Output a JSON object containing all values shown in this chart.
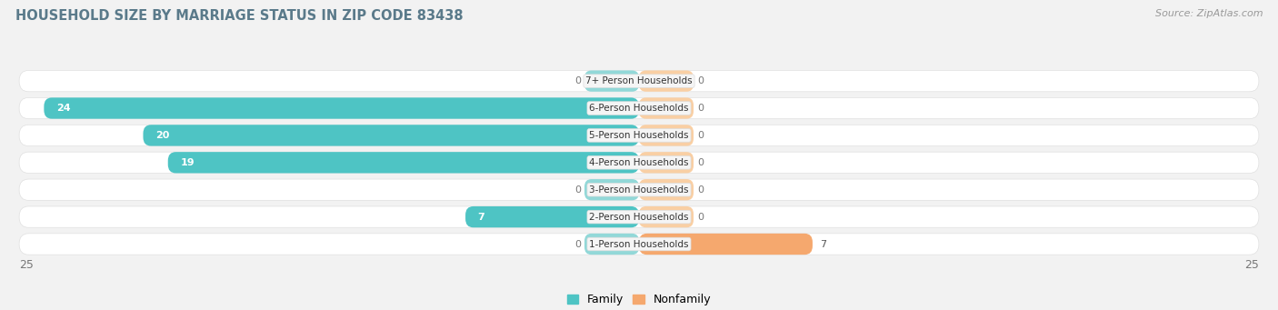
{
  "title": "HOUSEHOLD SIZE BY MARRIAGE STATUS IN ZIP CODE 83438",
  "source": "Source: ZipAtlas.com",
  "categories": [
    "7+ Person Households",
    "6-Person Households",
    "5-Person Households",
    "4-Person Households",
    "3-Person Households",
    "2-Person Households",
    "1-Person Households"
  ],
  "family_values": [
    0,
    24,
    20,
    19,
    0,
    7,
    0
  ],
  "nonfamily_values": [
    0,
    0,
    0,
    0,
    0,
    0,
    7
  ],
  "family_color": "#4EC4C4",
  "nonfamily_color": "#F5A86E",
  "family_color_zero": "#92D8D8",
  "nonfamily_color_zero": "#F9CFA4",
  "axis_limit": 25,
  "bg_color": "#f2f2f2",
  "row_bg_color": "#ffffff",
  "row_edge_color": "#e0e0e0",
  "label_bg_color": "#f5f5f5",
  "legend_labels": [
    "Family",
    "Nonfamily"
  ],
  "zero_stub": 2.2
}
